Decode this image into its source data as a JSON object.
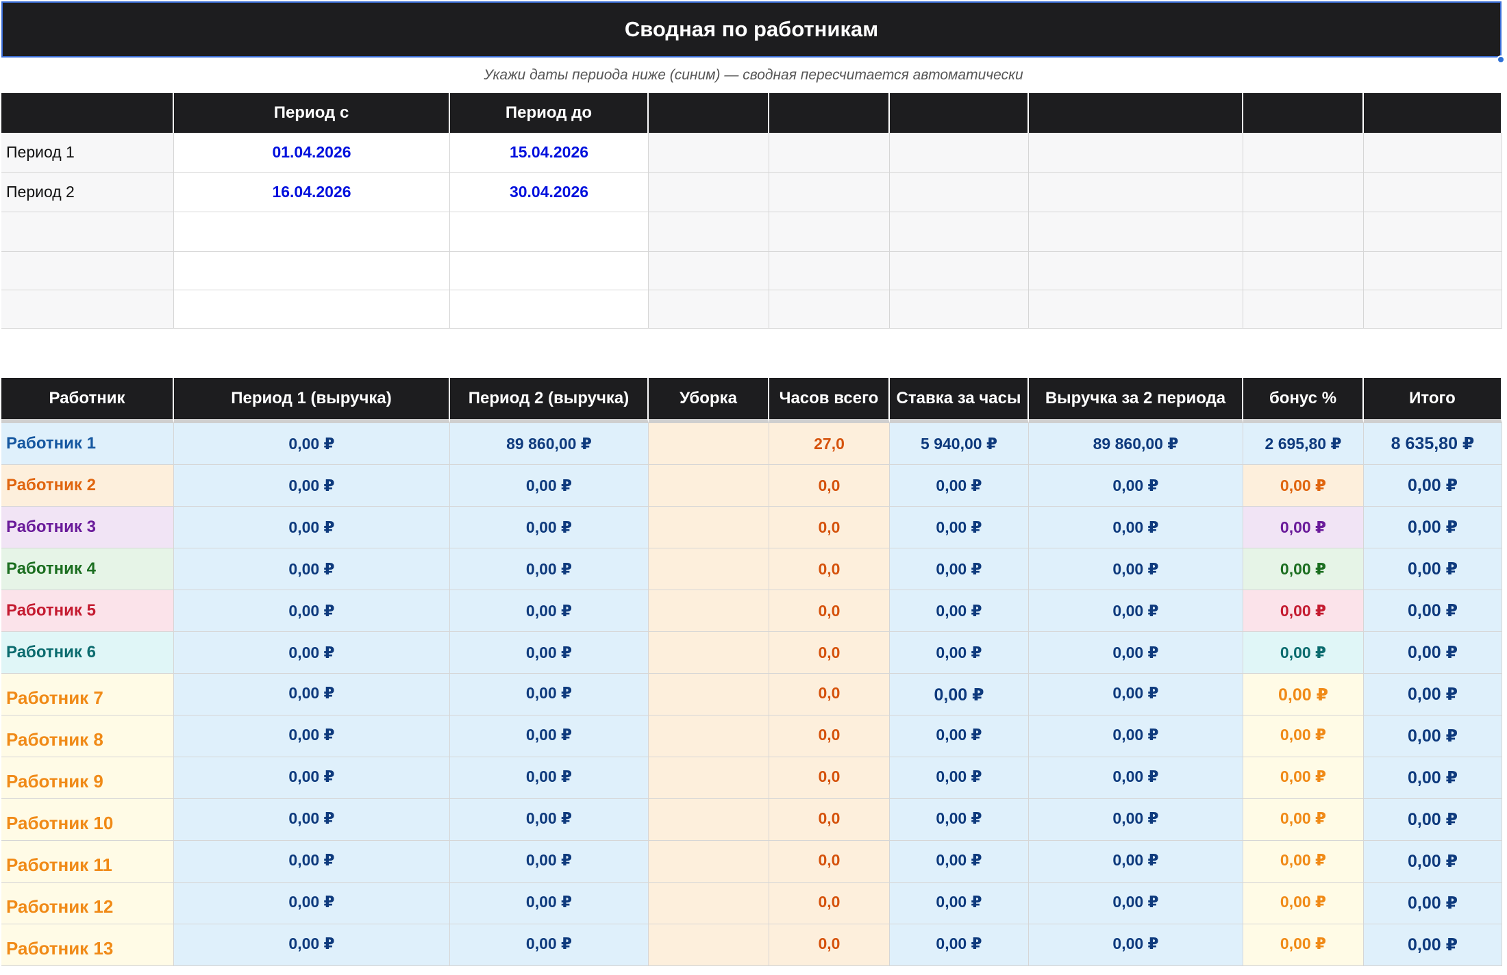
{
  "title": "Сводная по работникам",
  "subtitle": "Укажи даты периода ниже (синим) — сводная пересчитается автоматически",
  "periods_table": {
    "headers": [
      "",
      "Период с",
      "Период до",
      "",
      "",
      "",
      "",
      "",
      ""
    ],
    "rows": [
      {
        "label": "Период 1",
        "from": "01.04.2026",
        "to": "15.04.2026"
      },
      {
        "label": "Период 2",
        "from": "16.04.2026",
        "to": "30.04.2026"
      },
      {
        "label": "",
        "from": "",
        "to": ""
      },
      {
        "label": "",
        "from": "",
        "to": ""
      },
      {
        "label": "",
        "from": "",
        "to": ""
      }
    ]
  },
  "summary_table": {
    "headers": [
      "Работник",
      "Период 1 (выручка)",
      "Период 2 (выручка)",
      "Уборка",
      "Часов всего",
      "Ставка за часы",
      "Выручка за 2 периода",
      "бонус %",
      "Итого"
    ],
    "rows": [
      {
        "name": "Работник 1",
        "p1": "0,00 ₽",
        "p2": "89 860,00 ₽",
        "cleaning": "",
        "hours": "27,0",
        "rate": "5 940,00 ₽",
        "revenue2": "89 860,00 ₽",
        "bonus": "2 695,80 ₽",
        "total": "8 635,80 ₽"
      },
      {
        "name": "Работник 2",
        "p1": "0,00 ₽",
        "p2": "0,00 ₽",
        "cleaning": "",
        "hours": "0,0",
        "rate": "0,00 ₽",
        "revenue2": "0,00 ₽",
        "bonus": "0,00 ₽",
        "total": "0,00 ₽"
      },
      {
        "name": "Работник 3",
        "p1": "0,00 ₽",
        "p2": "0,00 ₽",
        "cleaning": "",
        "hours": "0,0",
        "rate": "0,00 ₽",
        "revenue2": "0,00 ₽",
        "bonus": "0,00 ₽",
        "total": "0,00 ₽"
      },
      {
        "name": "Работник 4",
        "p1": "0,00 ₽",
        "p2": "0,00 ₽",
        "cleaning": "",
        "hours": "0,0",
        "rate": "0,00 ₽",
        "revenue2": "0,00 ₽",
        "bonus": "0,00 ₽",
        "total": "0,00 ₽"
      },
      {
        "name": "Работник 5",
        "p1": "0,00 ₽",
        "p2": "0,00 ₽",
        "cleaning": "",
        "hours": "0,0",
        "rate": "0,00 ₽",
        "revenue2": "0,00 ₽",
        "bonus": "0,00 ₽",
        "total": "0,00 ₽"
      },
      {
        "name": "Работник 6",
        "p1": "0,00 ₽",
        "p2": "0,00 ₽",
        "cleaning": "",
        "hours": "0,0",
        "rate": "0,00 ₽",
        "revenue2": "0,00 ₽",
        "bonus": "0,00 ₽",
        "total": "0,00 ₽"
      },
      {
        "name": "Работник 7",
        "p1": "0,00 ₽",
        "p2": "0,00 ₽",
        "cleaning": "",
        "hours": "0,0",
        "rate": "0,00 ₽",
        "revenue2": "0,00 ₽",
        "bonus": "0,00 ₽",
        "total": "0,00 ₽"
      },
      {
        "name": "Работник 8",
        "p1": "0,00 ₽",
        "p2": "0,00 ₽",
        "cleaning": "",
        "hours": "0,0",
        "rate": "0,00 ₽",
        "revenue2": "0,00 ₽",
        "bonus": "0,00 ₽",
        "total": "0,00 ₽"
      },
      {
        "name": "Работник 9",
        "p1": "0,00 ₽",
        "p2": "0,00 ₽",
        "cleaning": "",
        "hours": "0,0",
        "rate": "0,00 ₽",
        "revenue2": "0,00 ₽",
        "bonus": "0,00 ₽",
        "total": "0,00 ₽"
      },
      {
        "name": "Работник 10",
        "p1": "0,00 ₽",
        "p2": "0,00 ₽",
        "cleaning": "",
        "hours": "0,0",
        "rate": "0,00 ₽",
        "revenue2": "0,00 ₽",
        "bonus": "0,00 ₽",
        "total": "0,00 ₽"
      },
      {
        "name": "Работник 11",
        "p1": "0,00 ₽",
        "p2": "0,00 ₽",
        "cleaning": "",
        "hours": "0,0",
        "rate": "0,00 ₽",
        "revenue2": "0,00 ₽",
        "bonus": "0,00 ₽",
        "total": "0,00 ₽"
      },
      {
        "name": "Работник 12",
        "p1": "0,00 ₽",
        "p2": "0,00 ₽",
        "cleaning": "",
        "hours": "0,0",
        "rate": "0,00 ₽",
        "revenue2": "0,00 ₽",
        "bonus": "0,00 ₽",
        "total": "0,00 ₽"
      },
      {
        "name": "Работник 13",
        "p1": "0,00 ₽",
        "p2": "0,00 ₽",
        "cleaning": "",
        "hours": "0,0",
        "rate": "0,00 ₽",
        "revenue2": "0,00 ₽",
        "bonus": "0,00 ₽",
        "total": "0,00 ₽"
      }
    ]
  },
  "worker_colors": [
    {
      "text": "#1557a0",
      "bg": "#dff0fb"
    },
    {
      "text": "#e0650f",
      "bg": "#fdefdc"
    },
    {
      "text": "#6a1b9a",
      "bg": "#f1e4f5"
    },
    {
      "text": "#1b6e20",
      "bg": "#e6f4e7"
    },
    {
      "text": "#c41b30",
      "bg": "#fbe3ea"
    },
    {
      "text": "#0b6b6e",
      "bg": "#e0f6f7"
    },
    {
      "text": "#f08a17",
      "bg": "#fffbe6"
    }
  ],
  "colors": {
    "header_bg": "#1d1d1f",
    "date_blue": "#0010dd",
    "money_blue": "#0e3a7d",
    "hours_orange": "#d5520c",
    "selection_blue": "#3b6fd8"
  }
}
